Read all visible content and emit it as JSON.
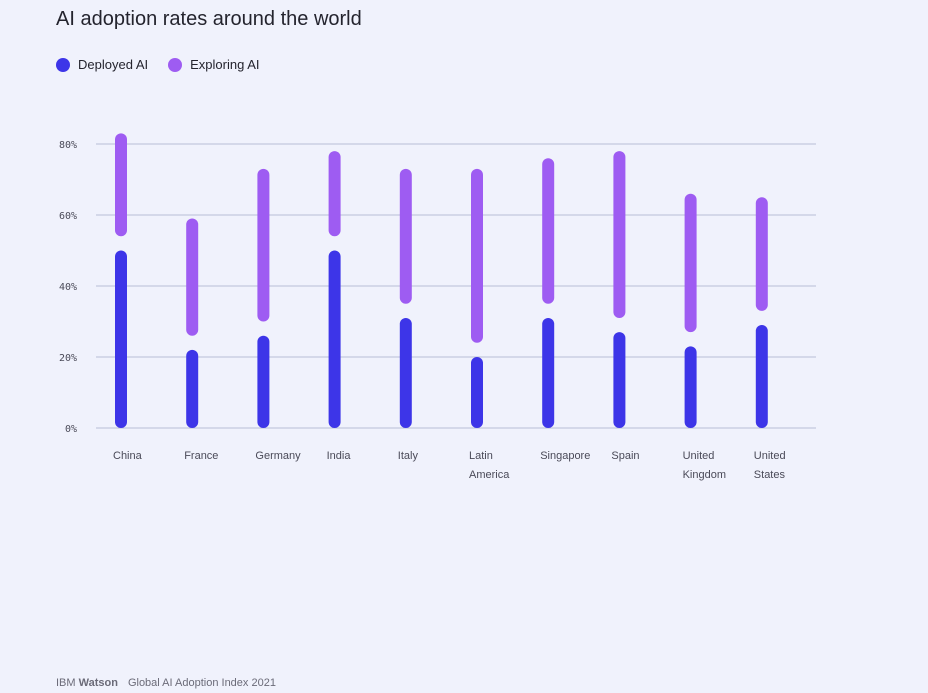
{
  "colors": {
    "deployed": "#3d35e8",
    "exploring": "#9e5cf2",
    "grid": "#b9bdd6",
    "axis_text": "#4a4a58"
  },
  "legend": {
    "deployed_label": "Deployed AI",
    "exploring_label": "Exploring AI"
  },
  "footer": {
    "brand_prefix": "IBM",
    "brand_bold": "Watson",
    "source": "Global AI Adoption Index 2021"
  },
  "chart_data": {
    "type": "bar",
    "title": "AI adoption rates around the world",
    "xlabel": "",
    "ylabel": "",
    "ylim": [
      0,
      80
    ],
    "y_ticks": [
      0,
      20,
      40,
      60,
      80
    ],
    "y_tick_labels": [
      "0%",
      "20%",
      "40%",
      "60%",
      "80%"
    ],
    "grid": true,
    "legend_position": "top-left",
    "categories": [
      [
        "China"
      ],
      [
        "France"
      ],
      [
        "Germany"
      ],
      [
        "India"
      ],
      [
        "Italy"
      ],
      [
        "Latin",
        "America"
      ],
      [
        "Singapore"
      ],
      [
        "Spain"
      ],
      [
        "United",
        "Kingdom"
      ],
      [
        "United",
        "States"
      ]
    ],
    "series": [
      {
        "name": "Deployed AI",
        "values": [
          50,
          22,
          26,
          50,
          31,
          20,
          31,
          27,
          23,
          29
        ]
      },
      {
        "name": "Exploring AI (top of range)",
        "values": [
          83,
          59,
          73,
          78,
          73,
          73,
          76,
          78,
          66,
          65
        ]
      },
      {
        "name": "Exploring AI (start of range)",
        "values": [
          54,
          26,
          30,
          54,
          35,
          24,
          35,
          31,
          27,
          33
        ]
      }
    ]
  }
}
